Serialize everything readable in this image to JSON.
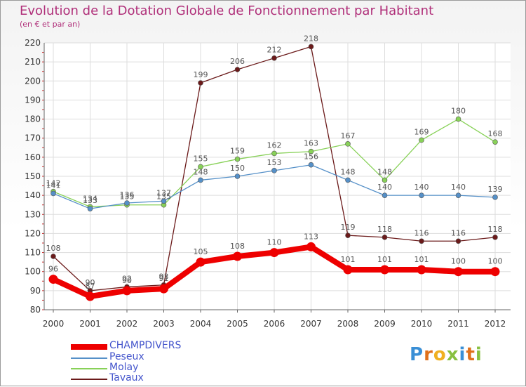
{
  "header": {
    "title": "Evolution de la Dotation Globale de Fonctionnement par Habitant",
    "subtitle": "(en € et par an)"
  },
  "logo": {
    "text": "Proxiti",
    "letters": [
      "P",
      "r",
      "o",
      "x",
      "i",
      "t",
      "i"
    ]
  },
  "chart_data": {
    "type": "line",
    "title": "Evolution de la Dotation Globale de Fonctionnement par Habitant",
    "subtitle": "(en € et par an)",
    "xlabel": "",
    "ylabel": "",
    "ylim": [
      80,
      220
    ],
    "yticks": [
      80,
      90,
      100,
      110,
      120,
      130,
      140,
      150,
      160,
      170,
      180,
      190,
      200,
      210,
      220
    ],
    "grid": true,
    "legend_position": "bottom-left",
    "x": [
      "2000",
      "2001",
      "2002",
      "2003",
      "2004",
      "2005",
      "2006",
      "2007",
      "2008",
      "2009",
      "2010",
      "2011",
      "2012"
    ],
    "series": [
      {
        "name": "Tavaux",
        "color": "#6b1a1a",
        "values": [
          108,
          90,
          92,
          93,
          199,
          206,
          212,
          218,
          119,
          118,
          116,
          116,
          118
        ]
      },
      {
        "name": "Molay",
        "color": "#88d158",
        "values": [
          142,
          134,
          135,
          135,
          155,
          159,
          162,
          163,
          167,
          148,
          169,
          180,
          168
        ]
      },
      {
        "name": "Peseux",
        "color": "#5590c8",
        "values": [
          141,
          133,
          136,
          137,
          148,
          150,
          153,
          156,
          148,
          140,
          140,
          140,
          139
        ]
      },
      {
        "name": "CHAMPDIVERS",
        "color": "#ee0000",
        "values": [
          96,
          87,
          90,
          91,
          105,
          108,
          110,
          113,
          101,
          101,
          101,
          100,
          100
        ]
      }
    ]
  },
  "legend": [
    {
      "name": "CHAMPDIVERS",
      "color": "#ee0000"
    },
    {
      "name": "Peseux",
      "color": "#5590c8"
    },
    {
      "name": "Molay",
      "color": "#88d158"
    },
    {
      "name": "Tavaux",
      "color": "#6b1a1a"
    }
  ]
}
